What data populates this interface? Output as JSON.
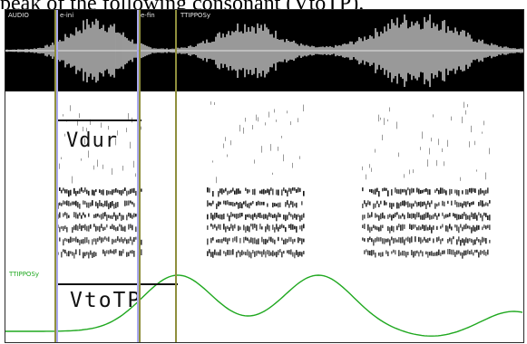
{
  "caption": "peak of the following consonant (VtoTP).",
  "audio_panel": {
    "track_label": "AUDIO",
    "markers": [
      {
        "label": "e-ini"
      },
      {
        "label": "e-fin"
      },
      {
        "label": "TTIPPOSy"
      }
    ]
  },
  "spectrogram_panel": {
    "measure_label": "Vdur"
  },
  "track_panel": {
    "track_label": "TTIPPOSy",
    "measure_label": "VtoTP"
  },
  "colors": {
    "background": "#000000",
    "waveform": "#ffffff",
    "spectrogram_ink": "#000000",
    "trajectory": "#1fa81f",
    "interval_marker": "#a9a9ef",
    "landmark_marker": "#8f8f3d"
  }
}
